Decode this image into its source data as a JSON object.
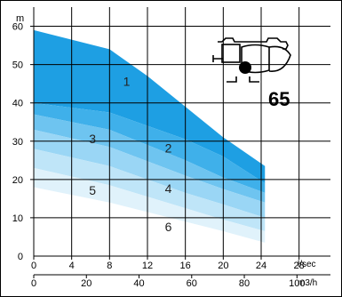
{
  "chart_data": {
    "type": "area",
    "y_unit_label": "m",
    "y_ticks": [
      "0",
      "10",
      "20",
      "30",
      "40",
      "50",
      "60"
    ],
    "ylim": [
      0,
      65
    ],
    "x_primary": {
      "unit_label": "l/sec",
      "ticks": [
        "0",
        "4",
        "8",
        "12",
        "16",
        "20",
        "24",
        "28"
      ],
      "lim": [
        0,
        30
      ]
    },
    "x_secondary": {
      "unit_label": "m3/h",
      "ticks": [
        "0",
        "20",
        "40",
        "60",
        "80",
        "100"
      ],
      "lim": [
        0,
        108
      ]
    },
    "model_label": "65",
    "zones": [
      {
        "label": "1",
        "color": "#1e9fe3",
        "label_at": [
          9.8,
          44.5
        ],
        "top": [
          [
            0,
            59
          ],
          [
            8,
            54
          ],
          [
            12,
            47
          ],
          [
            15,
            41
          ],
          [
            20,
            31
          ],
          [
            24.4,
            23.5
          ]
        ],
        "bottom": [
          [
            0,
            40
          ],
          [
            8,
            37.5
          ],
          [
            16,
            30.5
          ],
          [
            20,
            26
          ],
          [
            24.4,
            19
          ]
        ]
      },
      {
        "label": "2",
        "color": "#3fb0ea",
        "label_at": [
          14.2,
          27
        ],
        "top": [
          [
            0,
            40
          ],
          [
            8,
            37.5
          ],
          [
            16,
            30.5
          ],
          [
            20,
            26
          ],
          [
            24.4,
            19
          ]
        ],
        "bottom": [
          [
            0,
            37
          ],
          [
            8,
            33
          ],
          [
            16,
            25
          ],
          [
            20,
            20.5
          ],
          [
            24.4,
            16.5
          ]
        ]
      },
      {
        "label": "3",
        "color": "#6ec4f0",
        "label_at": [
          6.2,
          29.5
        ],
        "top": [
          [
            0,
            37
          ],
          [
            8,
            33
          ],
          [
            16,
            25
          ],
          [
            20,
            20.5
          ],
          [
            24.4,
            16.5
          ]
        ],
        "bottom": [
          [
            0,
            33
          ],
          [
            8,
            28.5
          ],
          [
            16,
            21
          ],
          [
            20,
            17.5
          ],
          [
            24.4,
            14
          ]
        ]
      },
      {
        "label": "4",
        "color": "#9ad6f5",
        "label_at": [
          14.2,
          16.5
        ],
        "top": [
          [
            0,
            33
          ],
          [
            8,
            28.5
          ],
          [
            16,
            21
          ],
          [
            20,
            17.5
          ],
          [
            24.4,
            14
          ]
        ],
        "bottom": [
          [
            0,
            28
          ],
          [
            8,
            23.5
          ],
          [
            16,
            16.5
          ],
          [
            20,
            13.5
          ],
          [
            24.4,
            10
          ]
        ]
      },
      {
        "label": "5",
        "color": "#bfe5f8",
        "label_at": [
          6.2,
          16
        ],
        "top": [
          [
            0,
            28
          ],
          [
            8,
            23.5
          ],
          [
            16,
            16.5
          ],
          [
            20,
            13.5
          ],
          [
            24.4,
            10
          ]
        ],
        "bottom": [
          [
            0,
            23
          ],
          [
            8,
            18.5
          ],
          [
            16,
            12.5
          ],
          [
            20,
            9.5
          ],
          [
            24.4,
            6.5
          ]
        ]
      },
      {
        "label": "6",
        "color": "#e0f2fb",
        "label_at": [
          14.2,
          6.5
        ],
        "top": [
          [
            0,
            23
          ],
          [
            8,
            18.5
          ],
          [
            16,
            12.5
          ],
          [
            20,
            9.5
          ],
          [
            24.4,
            6.5
          ]
        ],
        "bottom": [
          [
            0,
            18
          ],
          [
            8,
            14
          ],
          [
            16,
            9
          ],
          [
            20,
            6.5
          ],
          [
            24.4,
            3.5
          ]
        ]
      }
    ],
    "grid": true
  }
}
